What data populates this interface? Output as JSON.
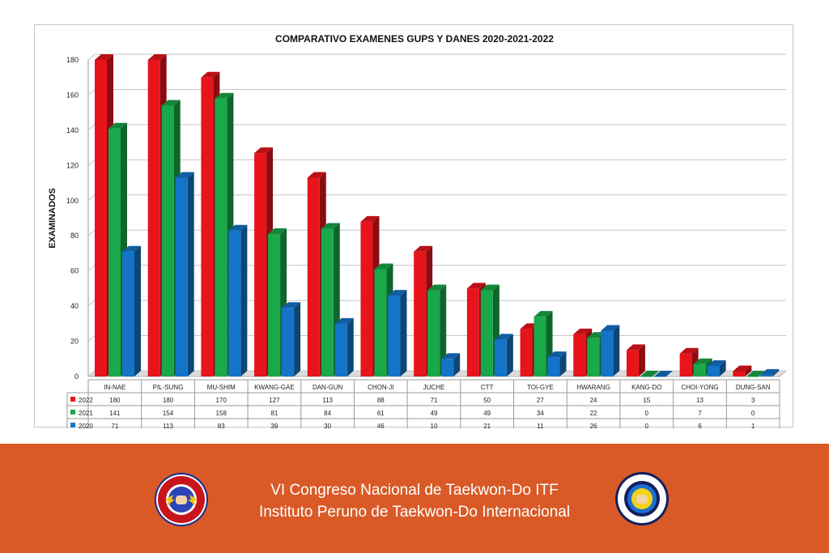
{
  "chart_data": {
    "type": "bar",
    "title": "COMPARATIVO EXAMENES GUPS Y DANES 2020-2021-2022",
    "ylabel": "EXAMINADOS",
    "xlabel": "",
    "ylim": [
      0,
      180
    ],
    "yticks": [
      0,
      20,
      40,
      60,
      80,
      100,
      120,
      140,
      160,
      180
    ],
    "grid": true,
    "style": "3d-clustered-columns-with-data-table",
    "categories": [
      "IN-NAE",
      "PIL-SUNG",
      "MU-SHIM",
      "KWANG-GAE",
      "DAN-GUN",
      "CHON-JI",
      "JUCHE",
      "CTT",
      "TOI-GYE",
      "HWARANG",
      "KANG-DO",
      "CHOI-YONG",
      "DUNG-SAN"
    ],
    "series": [
      {
        "name": "2022",
        "color": "#e8141b",
        "values": [
          180,
          180,
          170,
          127,
          113,
          88,
          71,
          50,
          27,
          24,
          15,
          13,
          3
        ]
      },
      {
        "name": "2021",
        "color": "#19a84a",
        "values": [
          141,
          154,
          158,
          81,
          84,
          61,
          49,
          49,
          34,
          22,
          0,
          7,
          0
        ]
      },
      {
        "name": "2020",
        "color": "#1474c8",
        "values": [
          71,
          113,
          83,
          39,
          30,
          46,
          10,
          21,
          11,
          26,
          0,
          6,
          1
        ]
      }
    ]
  },
  "footer": {
    "line1": "VI Congreso Nacional de Taekwon-Do ITF",
    "line2": "Instituto Peruno de Taekwon-Do Internacional",
    "background": "#d95a27"
  },
  "logos": {
    "left": {
      "icon": "ipti-emblem-icon",
      "ring_text": "INSTITUTO PERUANO DE TAEKWON-DO INTERNACIONAL",
      "bottom_text": "I.T.F."
    },
    "right": {
      "icon": "itf-emblem-icon",
      "ring_text": "INTERNATIONAL TAEKWON-DO FEDERATION"
    }
  }
}
